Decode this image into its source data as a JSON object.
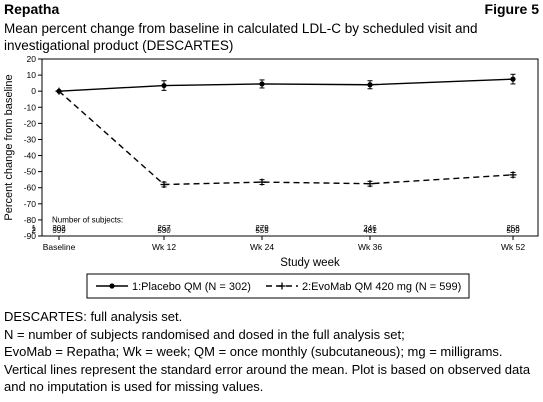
{
  "header": {
    "product": "Repatha",
    "figure": "Figure 5"
  },
  "subtitle": "Mean percent change from baseline in calculated LDL-C by scheduled visit and investigational product (DESCARTES)",
  "chart_data": {
    "type": "line",
    "ylabel": "Percent change from baseline",
    "xlabel": "Study week",
    "ylim": [
      -90,
      20
    ],
    "yticks": [
      20,
      10,
      0,
      -10,
      -20,
      -30,
      -40,
      -50,
      -60,
      -70,
      -80,
      -90
    ],
    "categories": [
      "Baseline",
      "Wk 12",
      "Wk 24",
      "Wk 36",
      "Wk 52"
    ],
    "series": [
      {
        "name": "1:Placebo QM (N = 302)",
        "style": "solid",
        "values": [
          0,
          3.5,
          4.5,
          4,
          7.5
        ],
        "se": [
          0,
          3,
          2.5,
          2.5,
          3
        ]
      },
      {
        "name": "2:EvoMab QM 420 mg (N = 599)",
        "style": "dashed",
        "values": [
          0,
          -58,
          -56.5,
          -57.5,
          -52
        ],
        "se": [
          0,
          1.5,
          1.5,
          1.5,
          1.5
        ]
      }
    ],
    "subjects_label": "Number of subjects:",
    "subjects": [
      {
        "row": "1",
        "counts": [
          "302",
          "267",
          "279",
          "246",
          "258"
        ]
      },
      {
        "row": "2",
        "counts": [
          "599",
          "530",
          "555",
          "481",
          "509"
        ]
      }
    ],
    "legend_position": "bottom"
  },
  "notes": [
    "DESCARTES: full analysis set.",
    "N = number of subjects randomised and dosed in the full analysis set;",
    "EvoMab = Repatha; Wk = week; QM = once monthly (subcutaneous); mg = milligrams.",
    "Vertical lines represent the standard error around the mean. Plot is based on observed data and no imputation is used for missing values."
  ]
}
